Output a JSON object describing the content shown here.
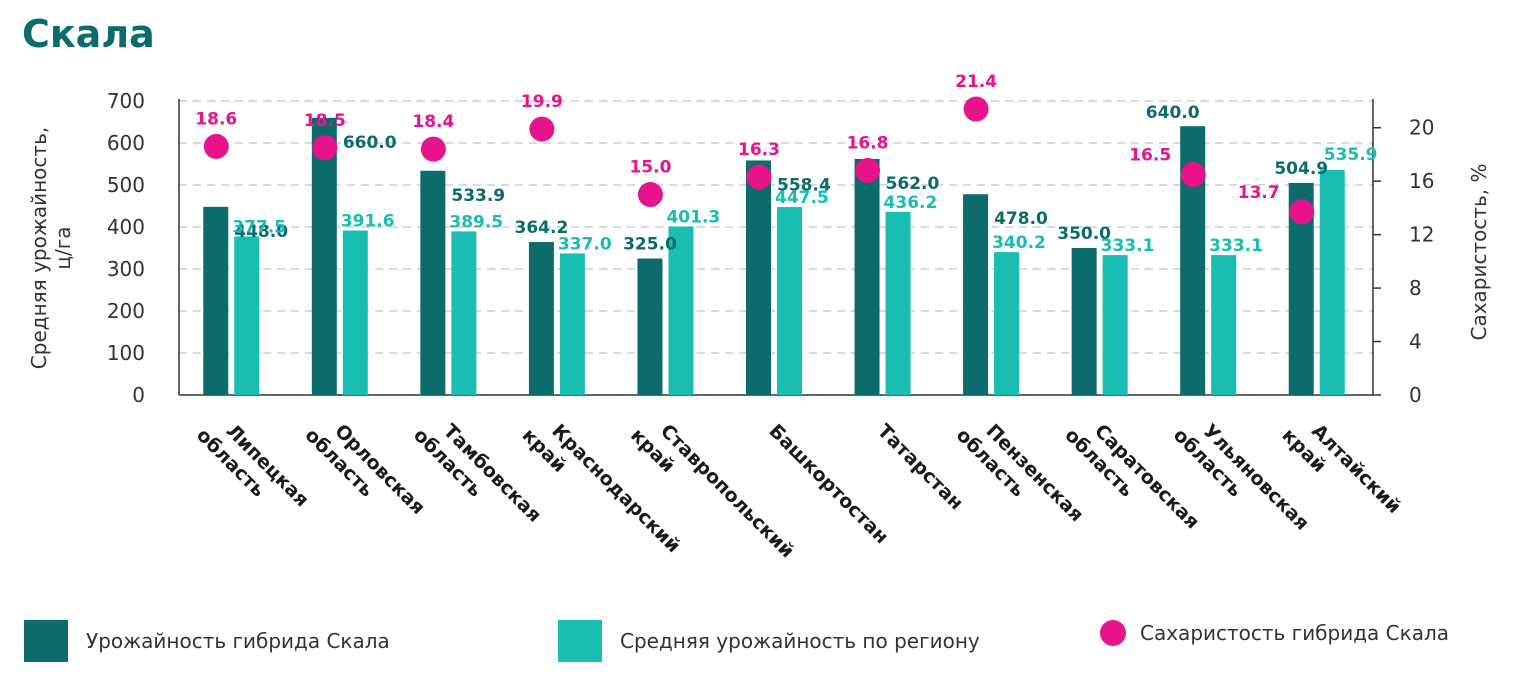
{
  "colors": {
    "primary": "#0c6b6b",
    "secondary": "#19bdb1",
    "accent": "#e8138a",
    "title": "#0c6b6b"
  },
  "chart_data": {
    "type": "bar",
    "title": "Скала",
    "categories": [
      [
        "Липецкая",
        "область"
      ],
      [
        "Орловская",
        "область"
      ],
      [
        "Тамбовская",
        "область"
      ],
      [
        "Краснодарский",
        "край"
      ],
      [
        "Ставропольский",
        "край"
      ],
      [
        "Башкортостан"
      ],
      [
        "Татарстан"
      ],
      [
        "Пензенская",
        "область"
      ],
      [
        "Саратовская",
        "область"
      ],
      [
        "Ульяновская",
        "область"
      ],
      [
        "Алтайский",
        "край"
      ]
    ],
    "ylabel": [
      "Средняя урожайность,",
      "ц/га"
    ],
    "y2label": "Сахаристость, %",
    "ylim": [
      0,
      700
    ],
    "yticks": [
      0,
      100,
      200,
      300,
      400,
      500,
      600,
      700
    ],
    "y2lim": [
      0,
      22
    ],
    "y2ticks": [
      0,
      4,
      8,
      12,
      16,
      20
    ],
    "grid": true,
    "legend_position": "bottom",
    "series": [
      {
        "name": "Урожайность гибрида Скала",
        "kind": "bar",
        "color": "#0c6b6b",
        "values": [
          448.0,
          660.0,
          533.9,
          364.2,
          325.0,
          558.4,
          562.0,
          478.0,
          350.0,
          640.0,
          504.9
        ]
      },
      {
        "name": "Средняя урожайность по региону",
        "kind": "bar",
        "color": "#19bdb1",
        "values": [
          377.5,
          391.6,
          389.5,
          337.0,
          401.3,
          447.5,
          436.2,
          340.2,
          333.1,
          333.1,
          535.9
        ]
      },
      {
        "name": "Сахаристость гибрида Скала",
        "kind": "scatter",
        "axis": "right",
        "color": "#e8138a",
        "values": [
          18.6,
          18.5,
          18.4,
          19.9,
          15.0,
          16.3,
          16.8,
          21.4,
          null,
          16.5,
          13.7
        ]
      }
    ]
  }
}
